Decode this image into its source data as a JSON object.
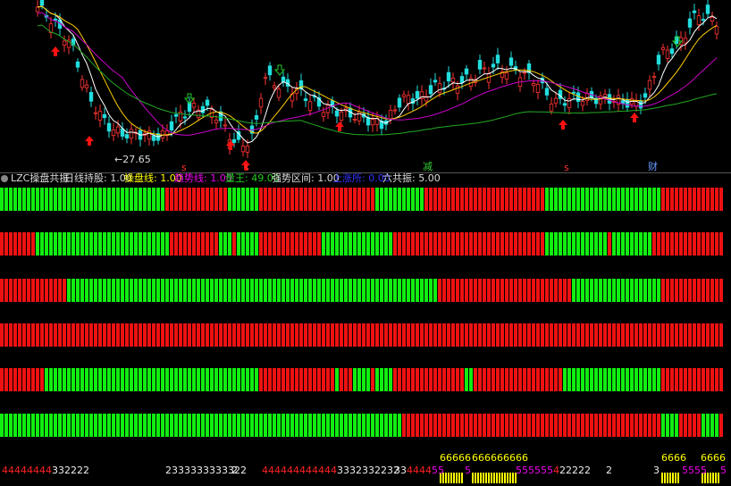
{
  "chart_panel": {
    "low_label": "←27.65",
    "events": [
      "s",
      "s",
      "减",
      "s",
      "财"
    ]
  },
  "indicator": {
    "title": "LZC操盘共振",
    "items": [
      "日线持股: 1.00",
      "操盘线: 1.00",
      "趋势线: 1.00",
      "量王: 49.00",
      "强势区间: 1.00",
      "上涨所: 0.00",
      "六共振: 5.00"
    ]
  },
  "footer": {
    "codes": [
      "44444444",
      "332222",
      "2333333333322",
      "2",
      "444444444444",
      "3332332232",
      "33",
      "4444",
      "55",
      "66666",
      "666666666",
      "5",
      "555555",
      "4",
      "22222",
      "2",
      "6666",
      "3",
      "5555",
      "6666",
      "5"
    ]
  }
}
